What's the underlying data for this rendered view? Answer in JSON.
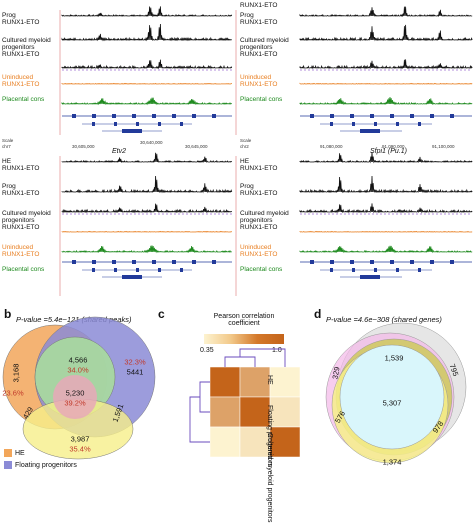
{
  "panel_a": {
    "track_labels_left": [
      "Prog",
      "RUNX1-ETO",
      "Cultured myeloid",
      "progenitors",
      "RUNX1-ETO",
      "Uninduced",
      "RUNX1-ETO",
      "Placental cons"
    ],
    "track_labels_right": [
      "RUNX1-ETO",
      "Prog",
      "RUNX1-ETO",
      "Cultured myeloid",
      "progenitors",
      "RUNX1-ETO",
      "Uninduced",
      "RUNX1-ETO",
      "Placental cons"
    ],
    "bottom_left_labels": [
      "HE",
      "RUNX1-ETO",
      "Prog",
      "RUNX1-ETO",
      "Cultured myeloid",
      "progenitors",
      "RUNX1-ETO",
      "Uninduced",
      "RUNX1-ETO",
      "Placental cons"
    ],
    "bottom_right_labels": [
      "HE",
      "RUNX1-ETO",
      "Prog",
      "RUNX1-ETO",
      "Cultured myeloid",
      "progenitors",
      "RUNX1-ETO",
      "Uninduced",
      "RUNX1-ETO",
      "Placental cons"
    ],
    "gene_etv2": "Etv2",
    "gene_sfpi1": "Sfpi1 (Pu.1)",
    "scale_label": "Scale",
    "chr_label_left": "chr7",
    "chr_label_right": "chr2",
    "coord_left": [
      "30,605,000",
      "30,640,000",
      "30,645,000"
    ],
    "coord_right": [
      "91,080,000",
      "91,090,000",
      "91,100,000"
    ]
  },
  "panel_b": {
    "letter": "b",
    "title": "P-value =5.4e−121 (shared peaks)",
    "values": {
      "he_only": "3,168",
      "he_only_pct": "23.6%",
      "he_green": "4,566",
      "he_green_pct": "34.0%",
      "right_pct": "32.3%",
      "right_val": "5441",
      "center": "5,230",
      "center_pct": "39.2%",
      "left_mid": "429",
      "right_mid": "1,591",
      "bottom": "3,987",
      "bottom_pct": "35.4%"
    },
    "legend": [
      "HE",
      "Floating progenitors"
    ],
    "colors": {
      "he": "#f2a65a",
      "floating": "#8b8bd6",
      "cultured": "#f6ef8a",
      "green": "#a8d8a0",
      "red": "#c0392b"
    }
  },
  "panel_c": {
    "letter": "c",
    "title_line1": "Pearson correlation",
    "title_line2": "coefficient",
    "scale_min": "0.35",
    "scale_max": "1.0",
    "row_labels": [
      "HE",
      "Floating progenitors",
      "Cultured myeloid progenitors"
    ],
    "matrix": [
      [
        1.0,
        0.72,
        0.35
      ],
      [
        0.72,
        1.0,
        0.42
      ],
      [
        0.35,
        0.42,
        1.0
      ]
    ]
  },
  "panel_d": {
    "letter": "d",
    "title": "P-value =4.6e−308 (shared genes)",
    "values": {
      "top": "1,539",
      "left_top": "329",
      "right_top": "795",
      "center": "5,307",
      "left_mid": "576",
      "right_mid": "978",
      "bottom": "1,374"
    }
  }
}
